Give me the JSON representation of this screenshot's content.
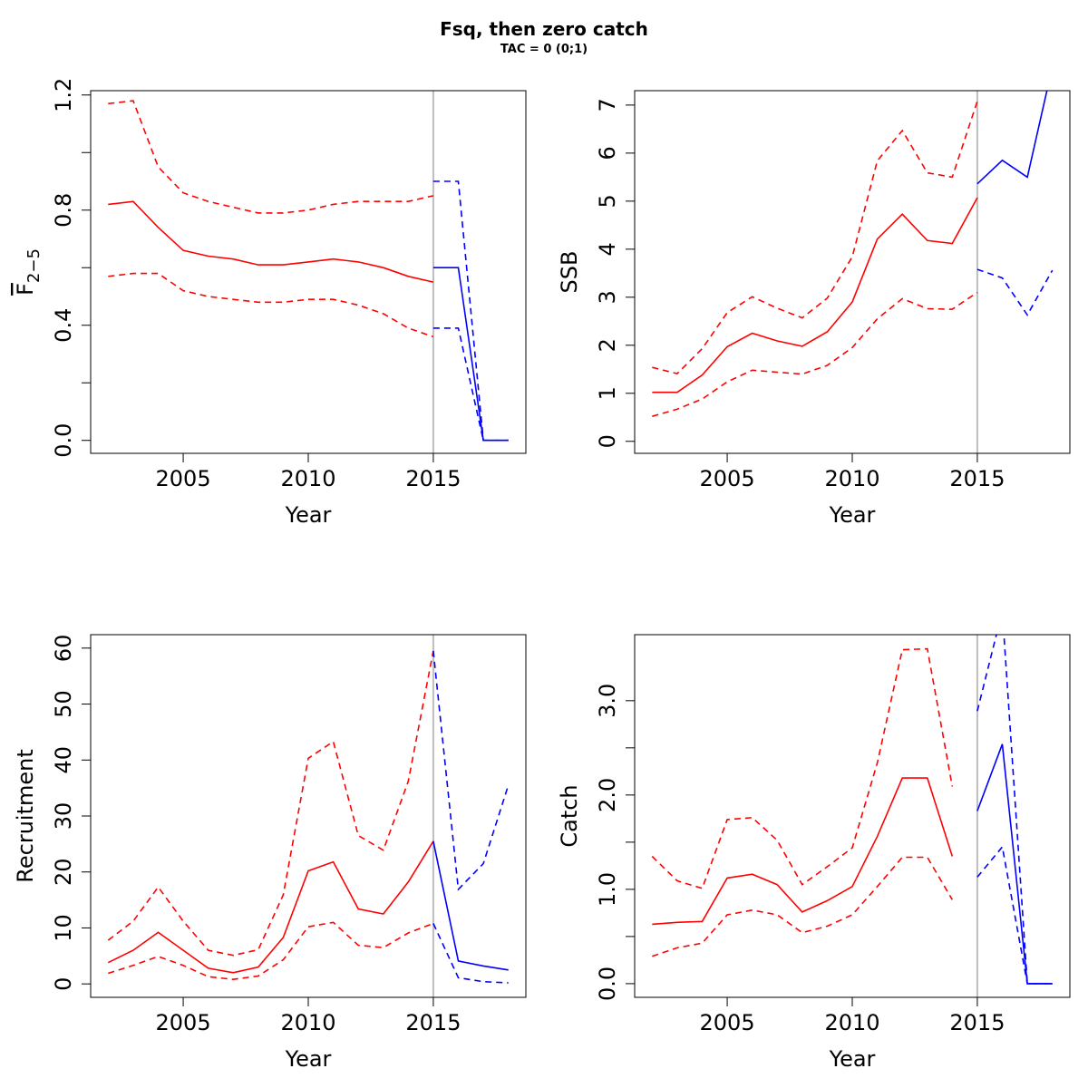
{
  "figure": {
    "title": "Fsq, then zero catch",
    "subtitle": "TAC = 0 (0;1)"
  },
  "colors": {
    "historical": "#ff0000",
    "forecast": "#0000ff",
    "divider": "#bebebe",
    "axis": "#000000"
  },
  "chart_data": [
    {
      "type": "line",
      "id": "fbar",
      "ylabel_main": "F",
      "ylabel_sub": "2−5",
      "xlabel": "Year",
      "xlim": [
        2001.3,
        2018.7
      ],
      "ylim": [
        -0.045,
        1.215
      ],
      "xticks": [
        2005,
        2010,
        2015
      ],
      "yticks": [
        0,
        0.2,
        0.4,
        0.6,
        0.8,
        1.0,
        1.2
      ],
      "ytick_labels": [
        "0.0",
        "",
        "0.4",
        "",
        "0.8",
        "",
        "1.2"
      ],
      "divider_x": 2015,
      "series": [
        {
          "role": "historical",
          "style": "solid",
          "x": [
            2002,
            2003,
            2004,
            2005,
            2006,
            2007,
            2008,
            2009,
            2010,
            2011,
            2012,
            2013,
            2014,
            2015
          ],
          "values": [
            0.82,
            0.83,
            0.74,
            0.66,
            0.64,
            0.63,
            0.61,
            0.61,
            0.62,
            0.63,
            0.62,
            0.6,
            0.57,
            0.55
          ]
        },
        {
          "role": "historical",
          "style": "dashed",
          "x": [
            2002,
            2003,
            2004,
            2005,
            2006,
            2007,
            2008,
            2009,
            2010,
            2011,
            2012,
            2013,
            2014,
            2015
          ],
          "values": [
            1.17,
            1.18,
            0.95,
            0.86,
            0.83,
            0.81,
            0.79,
            0.79,
            0.8,
            0.82,
            0.83,
            0.83,
            0.83,
            0.85
          ]
        },
        {
          "role": "historical",
          "style": "dashed",
          "x": [
            2002,
            2003,
            2004,
            2005,
            2006,
            2007,
            2008,
            2009,
            2010,
            2011,
            2012,
            2013,
            2014,
            2015
          ],
          "values": [
            0.57,
            0.58,
            0.58,
            0.52,
            0.5,
            0.49,
            0.48,
            0.48,
            0.49,
            0.49,
            0.47,
            0.44,
            0.39,
            0.36
          ]
        },
        {
          "role": "forecast",
          "style": "solid",
          "x": [
            2015,
            2016,
            2017,
            2018
          ],
          "values": [
            0.6,
            0.6,
            0.0,
            0.0
          ]
        },
        {
          "role": "forecast",
          "style": "dashed",
          "x": [
            2015,
            2016,
            2017,
            2018
          ],
          "values": [
            0.9,
            0.9,
            0.0,
            0.0
          ]
        },
        {
          "role": "forecast",
          "style": "dashed",
          "x": [
            2015,
            2016,
            2017,
            2018
          ],
          "values": [
            0.39,
            0.39,
            0.0,
            0.0
          ]
        }
      ]
    },
    {
      "type": "line",
      "id": "ssb",
      "ylabel_main": "SSB",
      "ylabel_sub": "",
      "xlabel": "Year",
      "xlim": [
        2001.3,
        2018.7
      ],
      "ylim": [
        -0.25,
        7.3
      ],
      "xticks": [
        2005,
        2010,
        2015
      ],
      "yticks": [
        0,
        1,
        2,
        3,
        4,
        5,
        6,
        7
      ],
      "ytick_labels": [
        "0",
        "1",
        "2",
        "3",
        "4",
        "5",
        "6",
        "7"
      ],
      "divider_x": 2015,
      "series": [
        {
          "role": "historical",
          "style": "solid",
          "x": [
            2002,
            2003,
            2004,
            2005,
            2006,
            2007,
            2008,
            2009,
            2010,
            2011,
            2012,
            2013,
            2014,
            2015
          ],
          "values": [
            1.02,
            1.02,
            1.38,
            1.97,
            2.25,
            2.09,
            1.98,
            2.28,
            2.9,
            4.21,
            4.73,
            4.18,
            4.12,
            5.07
          ]
        },
        {
          "role": "historical",
          "style": "dashed",
          "x": [
            2002,
            2003,
            2004,
            2005,
            2006,
            2007,
            2008,
            2009,
            2010,
            2011,
            2012,
            2013,
            2014,
            2015
          ],
          "values": [
            1.54,
            1.41,
            1.93,
            2.68,
            3.01,
            2.77,
            2.57,
            2.98,
            3.84,
            5.84,
            6.47,
            5.59,
            5.5,
            7.08
          ]
        },
        {
          "role": "historical",
          "style": "dashed",
          "x": [
            2002,
            2003,
            2004,
            2005,
            2006,
            2007,
            2008,
            2009,
            2010,
            2011,
            2012,
            2013,
            2014,
            2015
          ],
          "values": [
            0.52,
            0.67,
            0.88,
            1.24,
            1.48,
            1.44,
            1.4,
            1.58,
            1.95,
            2.55,
            2.97,
            2.76,
            2.75,
            3.1
          ]
        },
        {
          "role": "forecast",
          "style": "solid",
          "x": [
            2015,
            2016,
            2017,
            2018
          ],
          "values": [
            5.36,
            5.85,
            5.5,
            7.8
          ]
        },
        {
          "role": "forecast",
          "style": "dashed",
          "x": [
            2015,
            2016,
            2017,
            2018
          ],
          "values": [
            3.58,
            3.4,
            2.63,
            3.56
          ]
        }
      ]
    },
    {
      "type": "line",
      "id": "recruitment",
      "ylabel_main": "Recruitment",
      "ylabel_sub": "",
      "xlabel": "Year",
      "xlim": [
        2001.3,
        2018.7
      ],
      "ylim": [
        -2.4,
        62.4
      ],
      "xticks": [
        2005,
        2010,
        2015
      ],
      "yticks": [
        0,
        10,
        20,
        30,
        40,
        50,
        60
      ],
      "ytick_labels": [
        "0",
        "10",
        "20",
        "30",
        "40",
        "50",
        "60"
      ],
      "divider_x": 2015,
      "series": [
        {
          "role": "historical",
          "style": "solid",
          "x": [
            2002,
            2003,
            2004,
            2005,
            2006,
            2007,
            2008,
            2009,
            2010,
            2011,
            2012,
            2013,
            2014,
            2015
          ],
          "values": [
            3.8,
            6.0,
            9.2,
            6.0,
            2.8,
            2.0,
            3.0,
            8.3,
            20.2,
            21.8,
            13.4,
            12.5,
            18.2,
            25.5
          ]
        },
        {
          "role": "historical",
          "style": "dashed",
          "x": [
            2002,
            2003,
            2004,
            2005,
            2006,
            2007,
            2008,
            2009,
            2010,
            2011,
            2012,
            2013,
            2014,
            2015
          ],
          "values": [
            7.8,
            11.2,
            17.3,
            11.2,
            6.0,
            5.1,
            6.1,
            15.9,
            40.3,
            43.3,
            26.5,
            23.9,
            36.2,
            59.5
          ]
        },
        {
          "role": "historical",
          "style": "dashed",
          "x": [
            2002,
            2003,
            2004,
            2005,
            2006,
            2007,
            2008,
            2009,
            2010,
            2011,
            2012,
            2013,
            2014,
            2015
          ],
          "values": [
            1.9,
            3.3,
            4.9,
            3.3,
            1.3,
            0.8,
            1.4,
            4.3,
            10.2,
            11.0,
            6.9,
            6.5,
            9.1,
            10.8
          ]
        },
        {
          "role": "forecast",
          "style": "solid",
          "x": [
            2015,
            2016,
            2017,
            2018
          ],
          "values": [
            25.5,
            4.1,
            3.2,
            2.5
          ]
        },
        {
          "role": "forecast",
          "style": "dashed",
          "x": [
            2015,
            2016,
            2017,
            2018
          ],
          "values": [
            59.5,
            16.9,
            21.5,
            35.5
          ]
        },
        {
          "role": "forecast",
          "style": "dashed",
          "x": [
            2015,
            2016,
            2017,
            2018
          ],
          "values": [
            10.8,
            1.1,
            0.4,
            0.2
          ]
        }
      ]
    },
    {
      "type": "line",
      "id": "catch",
      "ylabel_main": "Catch",
      "ylabel_sub": "",
      "xlabel": "Year",
      "xlim": [
        2001.3,
        2018.7
      ],
      "ylim": [
        -0.145,
        3.7
      ],
      "xticks": [
        2005,
        2010,
        2015
      ],
      "yticks": [
        0,
        0.5,
        1.0,
        1.5,
        2.0,
        2.5,
        3.0
      ],
      "ytick_labels": [
        "0.0",
        "",
        "1.0",
        "",
        "2.0",
        "",
        "3.0"
      ],
      "divider_x": 2015,
      "series": [
        {
          "role": "historical",
          "style": "solid",
          "x": [
            2002,
            2003,
            2004,
            2005,
            2006,
            2007,
            2008,
            2009,
            2010,
            2011,
            2012,
            2013,
            2014
          ],
          "values": [
            0.63,
            0.65,
            0.66,
            1.12,
            1.16,
            1.05,
            0.76,
            0.88,
            1.03,
            1.56,
            2.18,
            2.18,
            1.35
          ]
        },
        {
          "role": "historical",
          "style": "dashed",
          "x": [
            2002,
            2003,
            2004,
            2005,
            2006,
            2007,
            2008,
            2009,
            2010,
            2011,
            2012,
            2013,
            2014
          ],
          "values": [
            1.35,
            1.09,
            1.01,
            1.74,
            1.76,
            1.52,
            1.05,
            1.24,
            1.44,
            2.34,
            3.54,
            3.55,
            2.09
          ]
        },
        {
          "role": "historical",
          "style": "dashed",
          "x": [
            2002,
            2003,
            2004,
            2005,
            2006,
            2007,
            2008,
            2009,
            2010,
            2011,
            2012,
            2013,
            2014
          ],
          "values": [
            0.29,
            0.38,
            0.43,
            0.73,
            0.78,
            0.73,
            0.54,
            0.61,
            0.73,
            1.03,
            1.34,
            1.34,
            0.89
          ]
        },
        {
          "role": "forecast",
          "style": "solid",
          "x": [
            2015,
            2016,
            2017,
            2018
          ],
          "values": [
            1.83,
            2.54,
            0.0,
            0.0
          ]
        },
        {
          "role": "forecast",
          "style": "dashed",
          "x": [
            2015,
            2016,
            2017,
            2018
          ],
          "values": [
            2.89,
            3.95,
            0.0,
            0.0
          ]
        },
        {
          "role": "forecast",
          "style": "dashed",
          "x": [
            2015,
            2016,
            2017,
            2018
          ],
          "values": [
            1.13,
            1.45,
            0.0,
            0.0
          ]
        }
      ]
    }
  ]
}
